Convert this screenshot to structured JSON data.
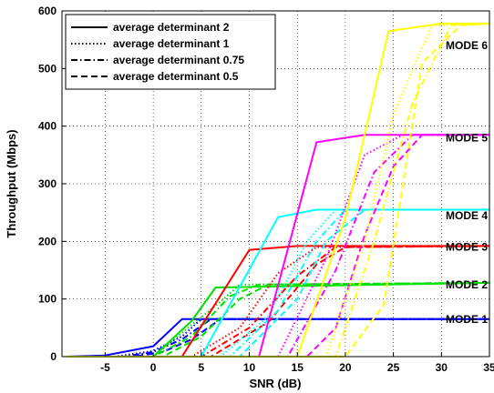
{
  "chart_data": {
    "type": "line",
    "xlabel": "SNR (dB)",
    "ylabel": "Throughput (Mbps)",
    "xlim": [
      -9.5,
      35
    ],
    "ylim": [
      0,
      600
    ],
    "xticks": [
      -5,
      0,
      5,
      10,
      15,
      20,
      25,
      30,
      35
    ],
    "yticks": [
      0,
      100,
      200,
      300,
      400,
      500,
      600
    ],
    "grid": true,
    "legend": {
      "placement": "top-left",
      "entries": [
        {
          "label": "average determinant 2",
          "style": "solid"
        },
        {
          "label": "average determinant 1",
          "style": "dotted"
        },
        {
          "label": "average determinant 0.75",
          "style": "dashdot"
        },
        {
          "label": "average determinant 0.5",
          "style": "dashed"
        }
      ]
    },
    "mode_labels": [
      {
        "text": "MODE 1",
        "value": 65
      },
      {
        "text": "MODE 2",
        "value": 125
      },
      {
        "text": "MODE 3",
        "value": 190
      },
      {
        "text": "MODE 4",
        "value": 245
      },
      {
        "text": "MODE 5",
        "value": 380
      },
      {
        "text": "MODE 6",
        "value": 540
      }
    ],
    "series": [
      {
        "mode": 1,
        "color": "#0000ff",
        "style": "solid",
        "x": [
          -9,
          -5,
          0,
          3,
          35
        ],
        "y": [
          0,
          2,
          18,
          65,
          65
        ]
      },
      {
        "mode": 1,
        "color": "#0000ff",
        "style": "dotted",
        "x": [
          -9,
          -4,
          0,
          3,
          5,
          35
        ],
        "y": [
          0,
          0,
          10,
          35,
          65,
          65
        ]
      },
      {
        "mode": 1,
        "color": "#0000ff",
        "style": "dashdot",
        "x": [
          -9,
          -3,
          0,
          3,
          6,
          35
        ],
        "y": [
          0,
          0,
          8,
          30,
          65,
          65
        ]
      },
      {
        "mode": 1,
        "color": "#0000ff",
        "style": "dashed",
        "x": [
          -9,
          -2,
          1,
          4,
          7,
          35
        ],
        "y": [
          0,
          0,
          8,
          30,
          65,
          65
        ]
      },
      {
        "mode": 2,
        "color": "#00e000",
        "style": "solid",
        "x": [
          -9,
          0,
          4,
          6.5,
          35
        ],
        "y": [
          0,
          0,
          62,
          120,
          128
        ]
      },
      {
        "mode": 2,
        "color": "#00e000",
        "style": "dotted",
        "x": [
          -9,
          0,
          4,
          7,
          9,
          35
        ],
        "y": [
          0,
          0,
          55,
          95,
          125,
          128
        ]
      },
      {
        "mode": 2,
        "color": "#00e000",
        "style": "dashdot",
        "x": [
          -9,
          0,
          4,
          8,
          11,
          35
        ],
        "y": [
          0,
          0,
          35,
          105,
          125,
          128
        ]
      },
      {
        "mode": 2,
        "color": "#00e000",
        "style": "dashed",
        "x": [
          -9,
          1,
          5,
          9,
          12,
          35
        ],
        "y": [
          0,
          0,
          35,
          100,
          125,
          128
        ]
      },
      {
        "mode": 3,
        "color": "#ff0000",
        "style": "solid",
        "x": [
          -9,
          3,
          10,
          15,
          35
        ],
        "y": [
          0,
          0,
          185,
          192,
          192
        ]
      },
      {
        "mode": 3,
        "color": "#ff0000",
        "style": "dotted",
        "x": [
          -9,
          4,
          9,
          13,
          17,
          35
        ],
        "y": [
          0,
          0,
          50,
          145,
          190,
          192
        ]
      },
      {
        "mode": 3,
        "color": "#ff0000",
        "style": "dashdot",
        "x": [
          -9,
          5,
          10,
          15,
          19,
          35
        ],
        "y": [
          0,
          0,
          50,
          140,
          190,
          192
        ]
      },
      {
        "mode": 3,
        "color": "#ff0000",
        "style": "dashed",
        "x": [
          -9,
          6,
          12,
          17,
          20,
          35
        ],
        "y": [
          0,
          0,
          60,
          160,
          190,
          192
        ]
      },
      {
        "mode": 4,
        "color": "#00ffff",
        "style": "solid",
        "x": [
          -9,
          5,
          13,
          17,
          35
        ],
        "y": [
          0,
          0,
          242,
          255,
          255
        ]
      },
      {
        "mode": 4,
        "color": "#00ffff",
        "style": "dotted",
        "x": [
          -9,
          7,
          12,
          16,
          19,
          35
        ],
        "y": [
          0,
          0,
          70,
          200,
          255,
          255
        ]
      },
      {
        "mode": 4,
        "color": "#00ffff",
        "style": "dashdot",
        "x": [
          -9,
          8,
          13,
          17,
          20,
          35
        ],
        "y": [
          0,
          0,
          80,
          200,
          255,
          255
        ]
      },
      {
        "mode": 4,
        "color": "#00ffff",
        "style": "dashed",
        "x": [
          -9,
          9,
          15,
          18,
          22,
          35
        ],
        "y": [
          0,
          0,
          100,
          200,
          255,
          255
        ]
      },
      {
        "mode": 5,
        "color": "#ff00ff",
        "style": "solid",
        "x": [
          -9,
          11,
          17,
          22,
          35
        ],
        "y": [
          0,
          0,
          372,
          385,
          385
        ]
      },
      {
        "mode": 5,
        "color": "#ff00ff",
        "style": "dotted",
        "x": [
          -9,
          13,
          18,
          22,
          26,
          35
        ],
        "y": [
          0,
          0,
          170,
          350,
          385,
          385
        ]
      },
      {
        "mode": 5,
        "color": "#ff00ff",
        "style": "dashdot",
        "x": [
          -9,
          14,
          19,
          23,
          27,
          35
        ],
        "y": [
          0,
          0,
          150,
          320,
          385,
          385
        ]
      },
      {
        "mode": 5,
        "color": "#ff00ff",
        "style": "dashed",
        "x": [
          -9,
          16,
          19,
          22,
          25,
          28,
          35
        ],
        "y": [
          0,
          0,
          50,
          210,
          330,
          385,
          385
        ]
      },
      {
        "mode": 6,
        "color": "#ffff00",
        "style": "solid",
        "x": [
          -9,
          15,
          20,
          24.5,
          30,
          35
        ],
        "y": [
          0,
          0,
          240,
          565,
          578,
          578
        ]
      },
      {
        "mode": 6,
        "color": "#ffff00",
        "style": "dotted",
        "x": [
          -9,
          18,
          22,
          25,
          29,
          35
        ],
        "y": [
          0,
          0,
          200,
          420,
          575,
          578
        ]
      },
      {
        "mode": 6,
        "color": "#ffff00",
        "style": "dashdot",
        "x": [
          -9,
          19,
          23,
          27,
          31,
          35
        ],
        "y": [
          0,
          0,
          200,
          440,
          575,
          578
        ]
      },
      {
        "mode": 6,
        "color": "#ffff00",
        "style": "dashed",
        "x": [
          -9,
          20,
          24,
          28,
          32,
          35
        ],
        "y": [
          0,
          0,
          90,
          510,
          575,
          578
        ]
      }
    ]
  }
}
